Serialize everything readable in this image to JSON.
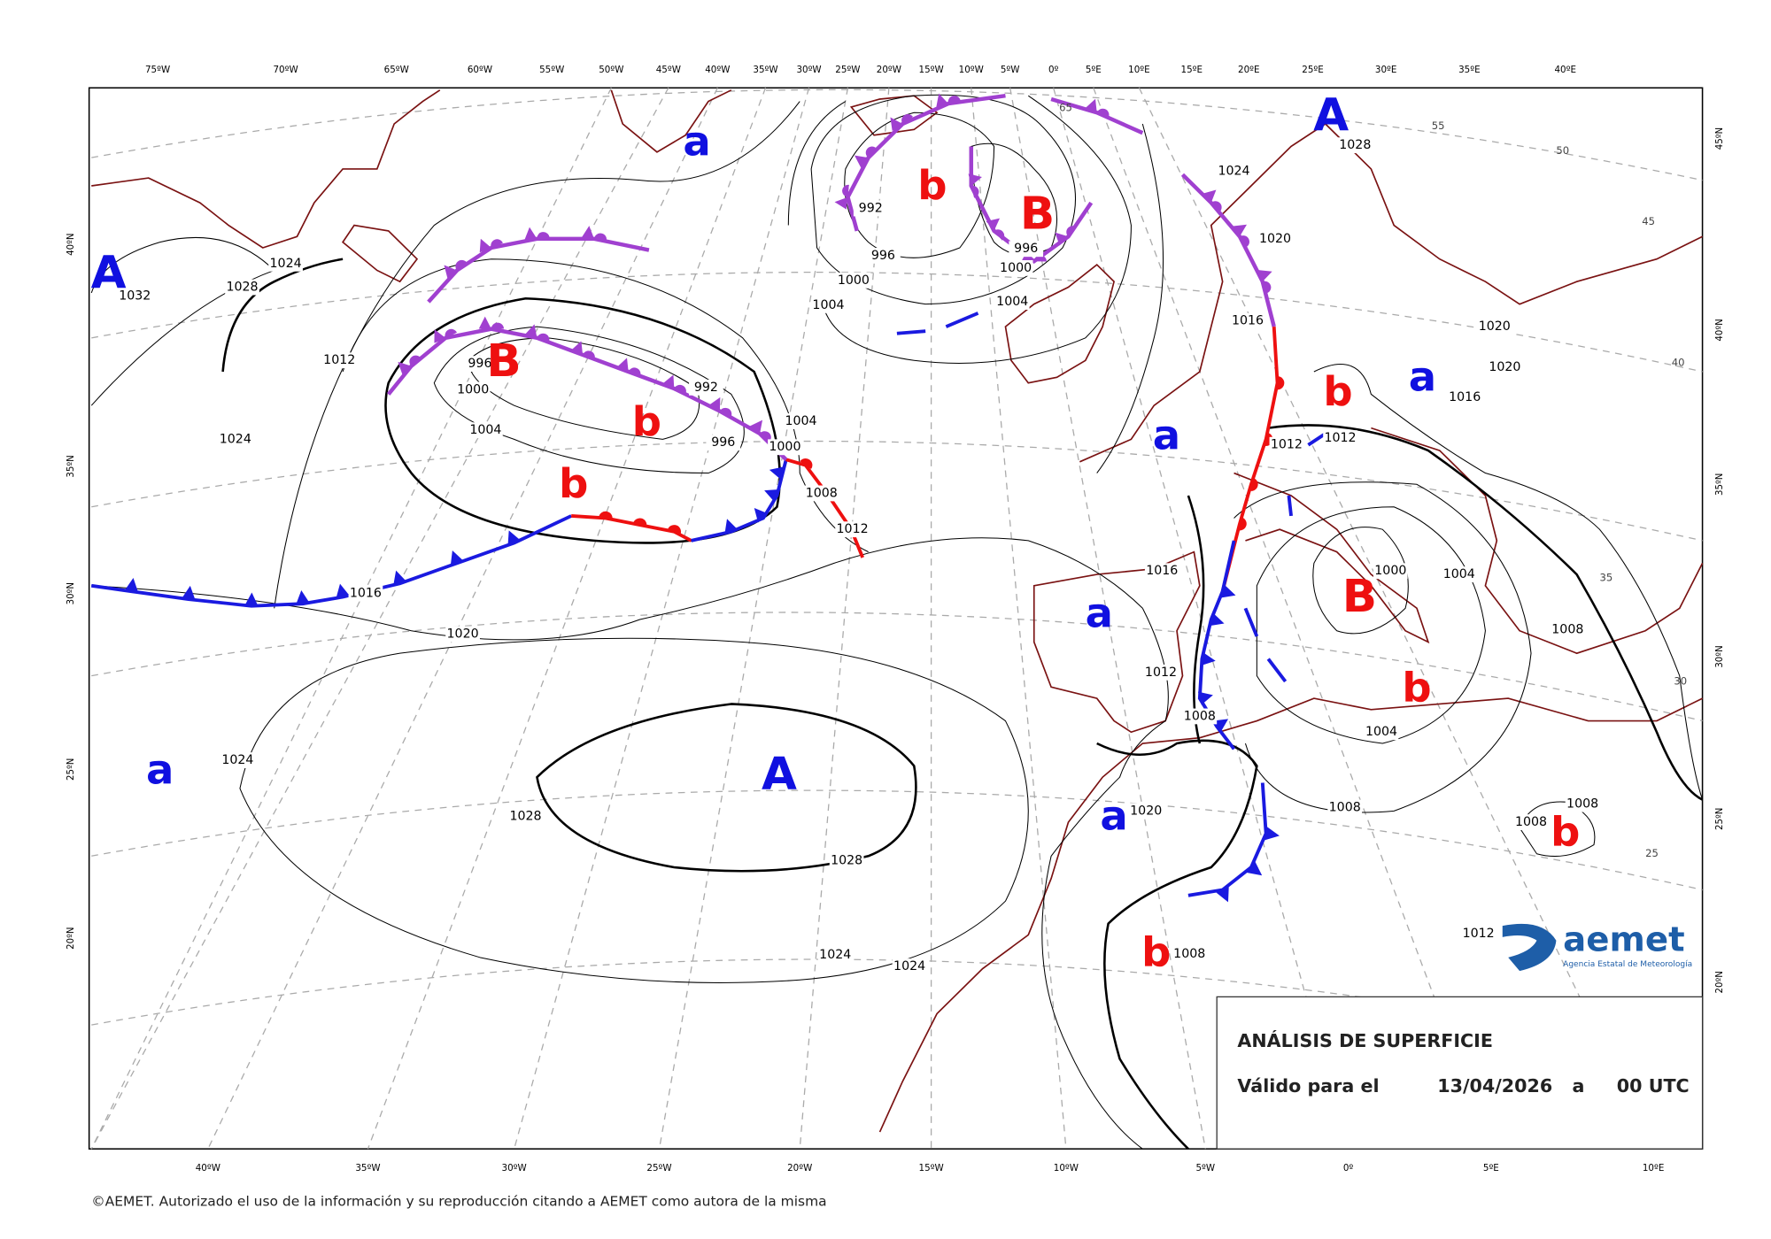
{
  "lon_top": [
    "75ºW",
    "70ºW",
    "65ºW",
    "60ºW",
    "55ºW",
    "50ºW",
    "45ºW",
    "40ºW",
    "35ºW",
    "30ºW",
    "25ºW",
    "20ºW",
    "15ºW",
    "10ºW",
    "5ºW",
    "0º",
    "5ºE",
    "10ºE",
    "15ºE",
    "20ºE",
    "25ºE",
    "30ºE",
    "35ºE",
    "40ºE"
  ],
  "lon_bottom": [
    "40ºW",
    "35ºW",
    "30ºW",
    "25ºW",
    "20ºW",
    "15ºW",
    "10ºW",
    "5ºW",
    "0º",
    "5ºE",
    "10ºE"
  ],
  "lat_left": [
    "40ºN",
    "35ºN",
    "30ºN",
    "25ºN",
    "20ºN"
  ],
  "lat_right": [
    "45ºN",
    "40ºN",
    "35ºN",
    "30ºN",
    "25ºN",
    "20ºN"
  ],
  "isobar_labels": [
    "1032",
    "1028",
    "1024",
    "1012",
    "1024",
    "1016",
    "1020",
    "1024",
    "1028",
    "1028",
    "1024",
    "1024",
    "1000",
    "1004",
    "996",
    "992",
    "1000",
    "1004",
    "1008",
    "1012",
    "996",
    "992",
    "996",
    "1000",
    "1004",
    "996",
    "1004",
    "1000",
    "1016",
    "1012",
    "1008",
    "1020",
    "1008",
    "1016",
    "1020",
    "1024",
    "1028",
    "1020",
    "1020",
    "1016",
    "1012",
    "1012",
    "1000",
    "1004",
    "1008",
    "1004",
    "1008",
    "1008",
    "1008",
    "1012"
  ],
  "lat_circle_labels": [
    "65",
    "55",
    "50",
    "45",
    "40",
    "35",
    "30",
    "25"
  ],
  "pressure_centers": [
    "A",
    "a",
    "b",
    "B",
    "B",
    "b",
    "b",
    "A",
    "a",
    "b",
    "a",
    "B",
    "a",
    "b",
    "a",
    "A",
    "a",
    "b",
    "b"
  ],
  "info_box": {
    "title": "ANÁLISIS DE SUPERFICIE",
    "valid_label": "Válido para el",
    "date": "13/04/2026",
    "connector": "a",
    "time": "00 UTC"
  },
  "logo": {
    "name": "aemet",
    "subtitle": "Agencia Estatal de Meteorología"
  },
  "copyright": "©AEMET. Autorizado el uso de la información y su reproducción citando a AEMET como autora de la misma"
}
